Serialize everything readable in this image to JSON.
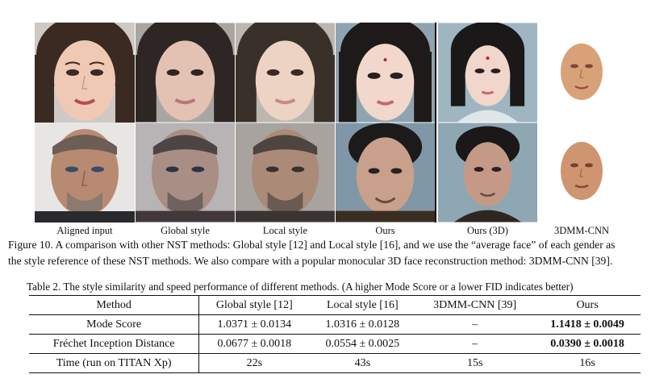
{
  "figure": {
    "columns": [
      "Aligned input",
      "Global style",
      "Local style",
      "Ours",
      "Ours (3D)",
      "3DMM-CNN"
    ],
    "rows": [
      {
        "subject": "female face"
      },
      {
        "subject": "male face"
      }
    ],
    "caption_line1": "Figure 10. A comparison with other NST methods: Global style [12] and Local style [16], and we use the “average face” of each gender as",
    "caption_line2": "the style reference of these NST methods. We also compare with a popular monocular 3D face reconstruction method: 3DMM-CNN [39]."
  },
  "table": {
    "caption": "Table 2. The style similarity and speed performance of different methods. (A higher Mode Score or a lower FID indicates better)",
    "header": [
      "Method",
      "Global style [12]",
      "Local style [16]",
      "3DMM-CNN [39]",
      "Ours"
    ],
    "rows": [
      {
        "label": "Mode Score",
        "global": "1.0371 ± 0.0134",
        "local": "1.0316 ± 0.0128",
        "cnn": "–",
        "ours": "1.1418 ± 0.0049"
      },
      {
        "label": "Fréchet Inception Distance",
        "global": "0.0677 ± 0.0018",
        "local": "0.0554 ± 0.0025",
        "cnn": "–",
        "ours": "0.0390 ± 0.0018"
      },
      {
        "label": "Time (run on TITAN Xp)",
        "global": "22s",
        "local": "43s",
        "cnn": "15s",
        "ours": "16s"
      }
    ]
  }
}
